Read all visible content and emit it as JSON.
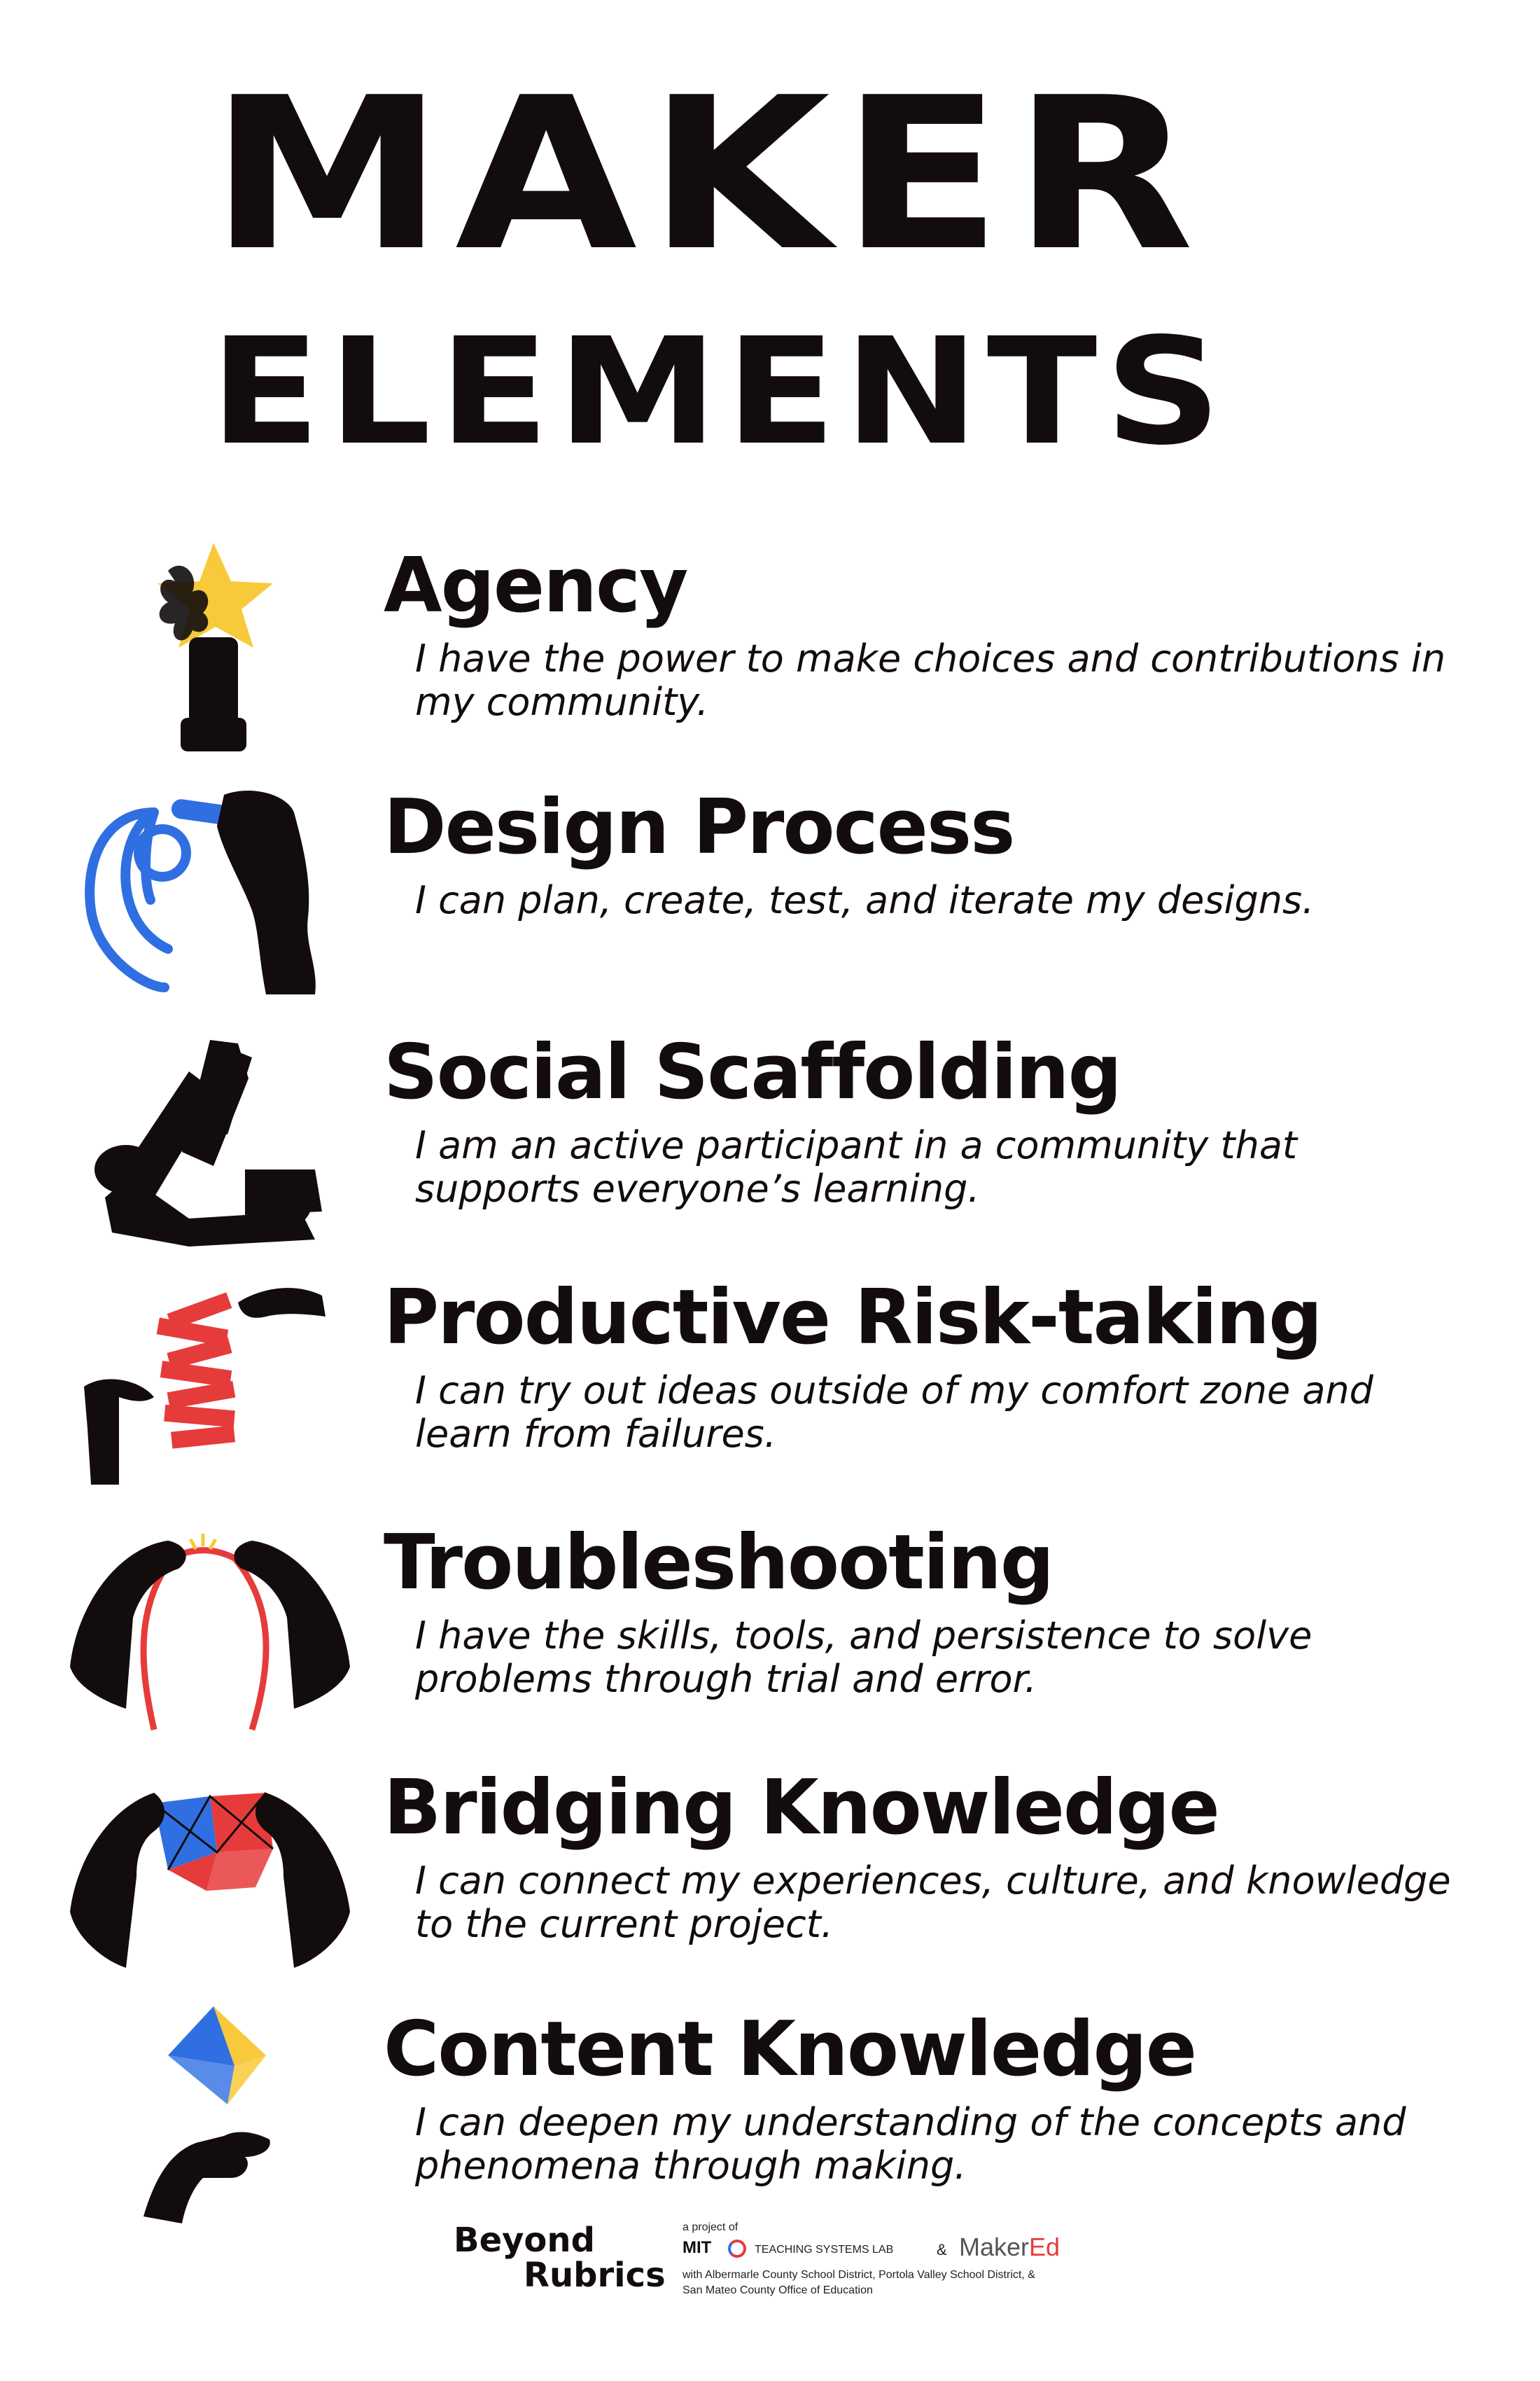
{
  "title": {
    "line1": "MAKER",
    "line2": "ELEMENTS"
  },
  "colors": {
    "ink": "#120c0d",
    "yellow": "#f8c93a",
    "blue": "#2f6fe2",
    "red": "#e63b3b"
  },
  "elements": [
    {
      "name": "Agency",
      "description": "I have the power to make choices and contributions in my community.",
      "icon": "hand-holding-star-icon"
    },
    {
      "name": "Design Process",
      "description": "I can plan, create, test, and iterate my designs.",
      "icon": "hand-drawing-spiral-icon"
    },
    {
      "name": "Social Scaffolding",
      "description": "I am an active participant in a community that supports everyone’s learning.",
      "icon": "three-linked-arms-icon"
    },
    {
      "name": "Productive Risk-taking",
      "description": "I can try out ideas outside of my comfort zone and learn from failures.",
      "icon": "block-tower-hands-icon"
    },
    {
      "name": "Troubleshooting",
      "description": "I have the skills, tools, and persistence to solve problems through trial and error.",
      "icon": "hands-tying-string-icon"
    },
    {
      "name": "Bridging Knowledge",
      "description": "I can connect my experiences, culture, and knowledge to the current project.",
      "icon": "hands-joining-shapes-icon"
    },
    {
      "name": "Content Knowledge",
      "description": "I can deepen my understanding of the concepts and phenomena through making.",
      "icon": "hand-under-octahedron-icon"
    }
  ],
  "footer": {
    "logo_line1": "Beyond",
    "logo_line2": "Rubrics",
    "project_of": "a project of",
    "mit": "MIT",
    "tsl": "TEACHING SYSTEMS LAB",
    "amp": "&",
    "makered_a": "Maker",
    "makered_b": "Ed",
    "partners_line1": "with Albermarle County School District, Portola Valley School District, &",
    "partners_line2": "San Mateo County Office of Education"
  }
}
